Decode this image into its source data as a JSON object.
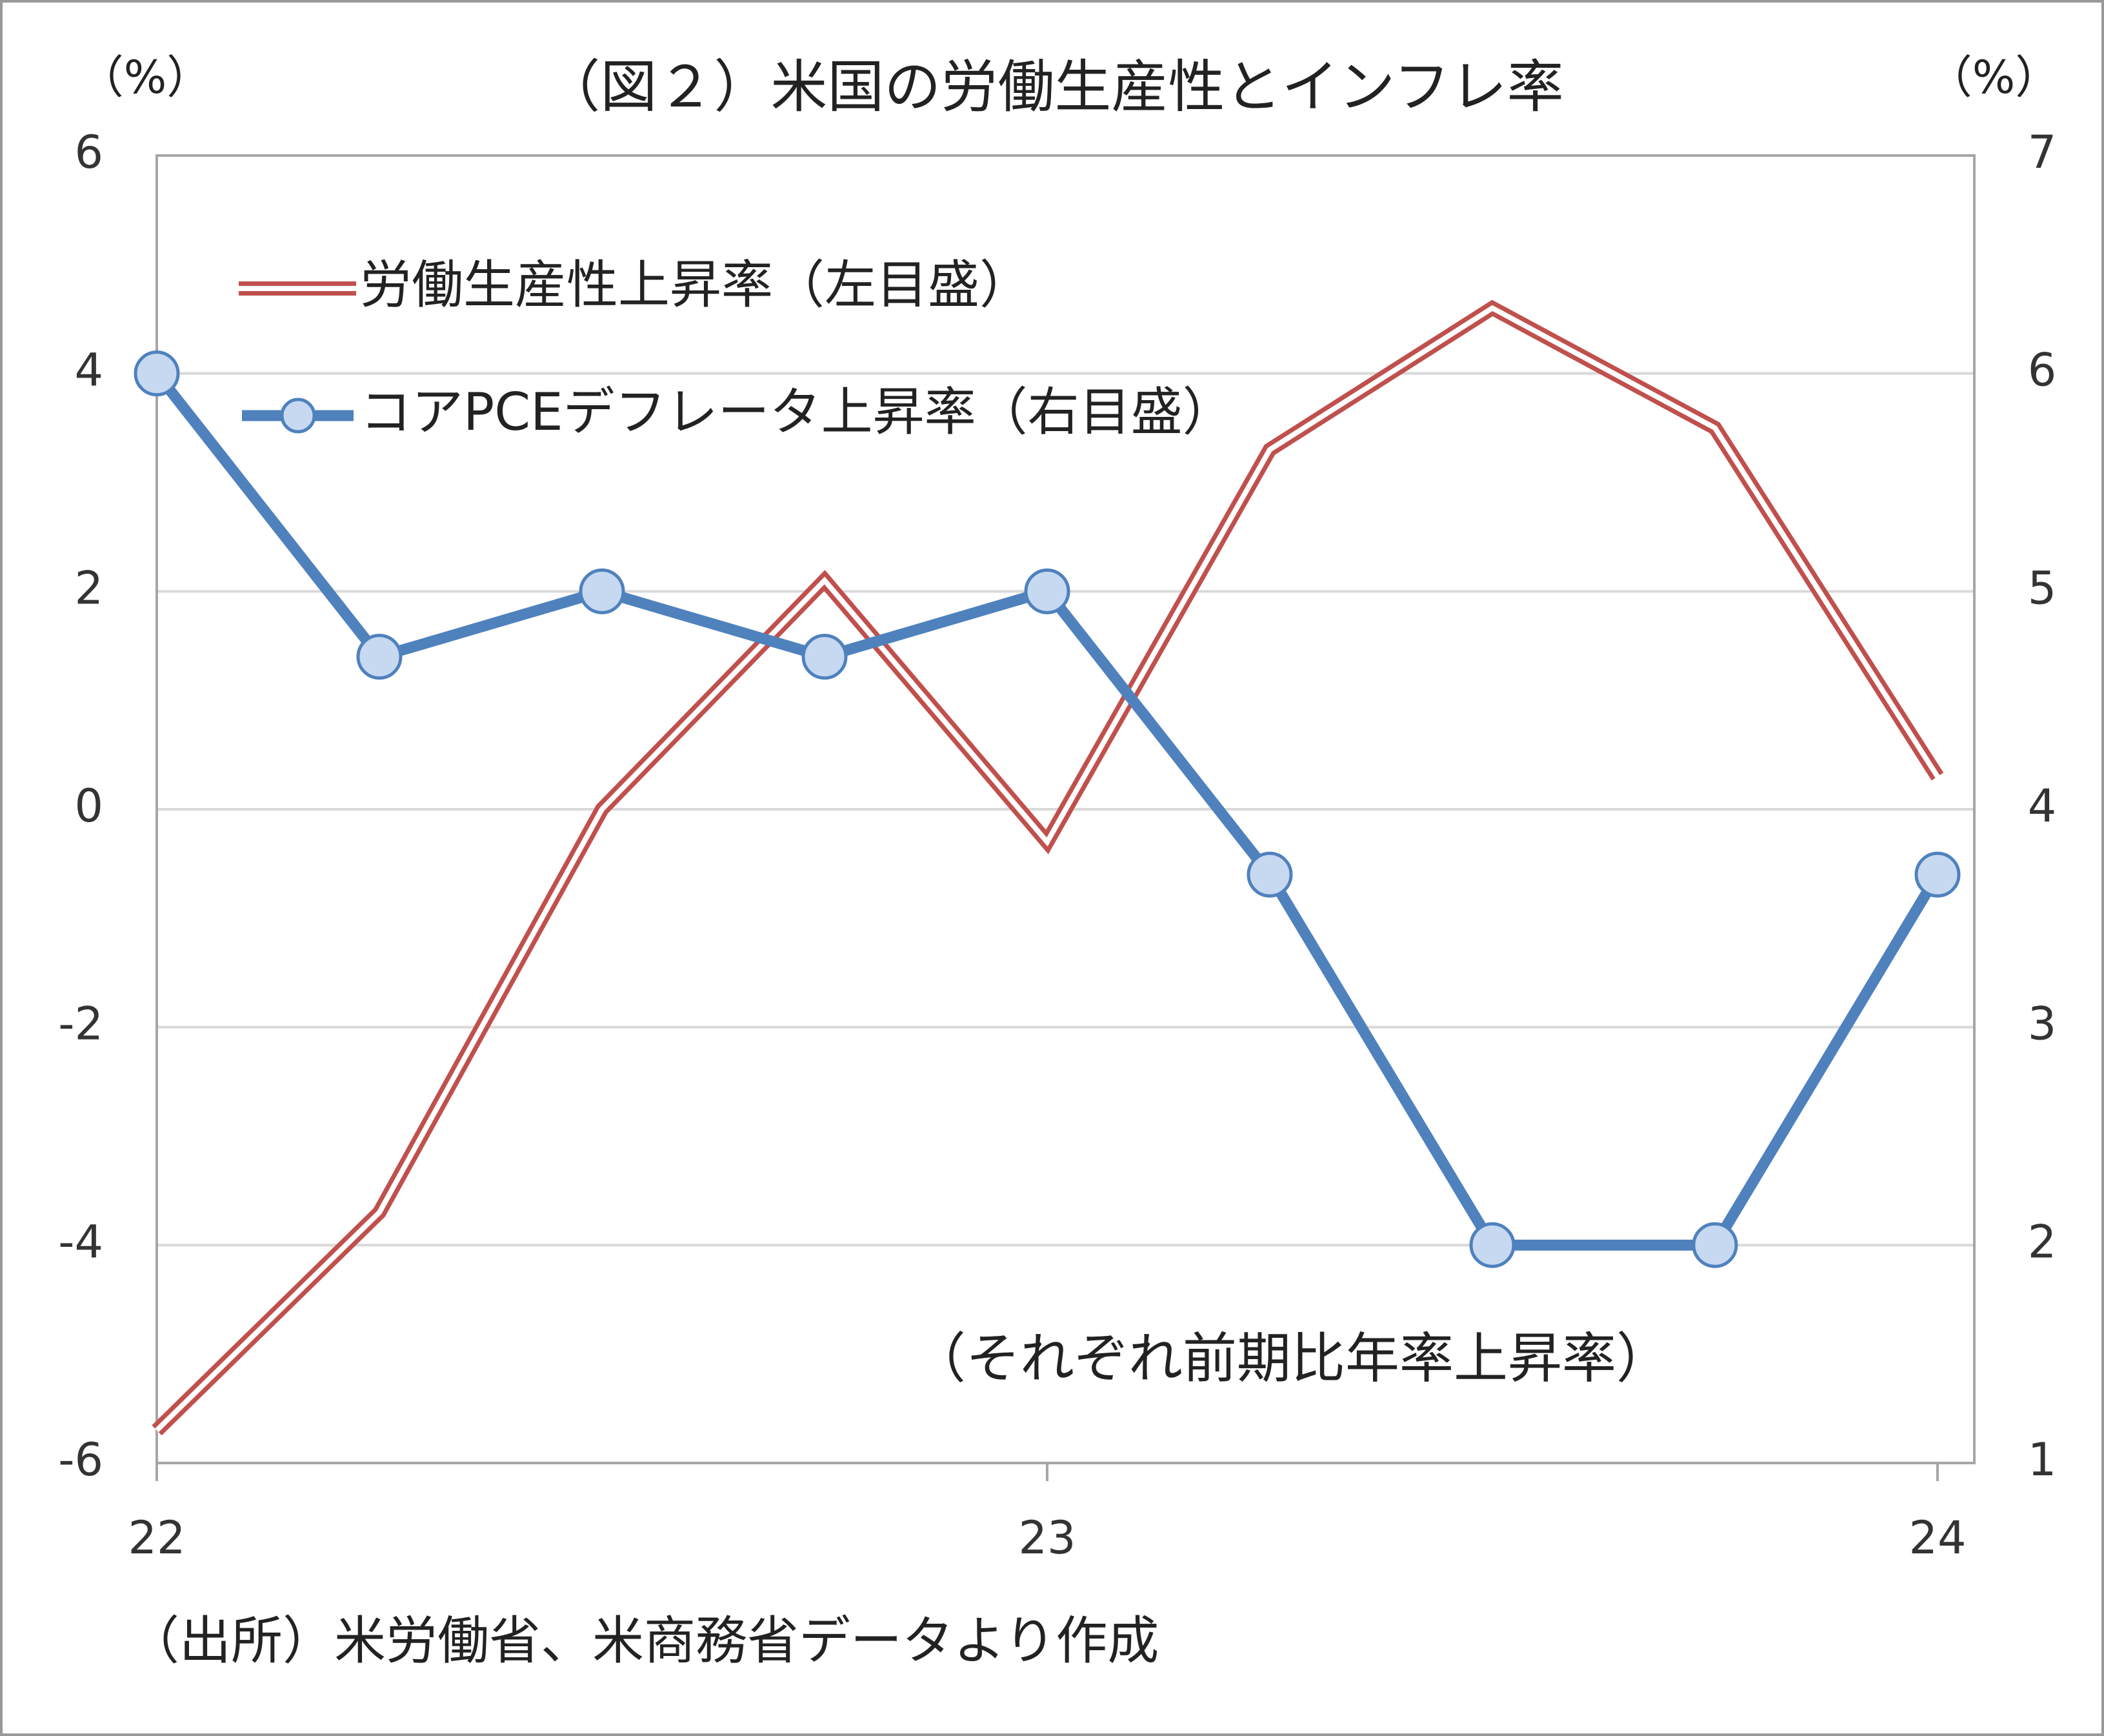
{
  "chart_data": {
    "type": "line",
    "title": "（図２）米国の労働生産性とインフレ率",
    "y_unit": "（%）",
    "y2_unit": "（%）",
    "annotation": "（それぞれ前期比年率上昇率）",
    "source": "（出所）米労働省、米商務省データより作成",
    "categories": [
      "22",
      null,
      null,
      null,
      "23",
      null,
      null,
      null,
      "24"
    ],
    "series": [
      {
        "name": "労働生産性上昇率（左目盛）",
        "color": "#c0504d",
        "style": "double",
        "values": [
          -5.7,
          -3.7,
          0.0,
          2.1,
          -0.3,
          3.3,
          4.6,
          3.5,
          0.3
        ]
      },
      {
        "name": "コアPCEデフレータ上昇率（右目盛）",
        "color": "#4f81bd",
        "marker_fill": "#c6d9f1",
        "axis": "y2",
        "values": [
          6.0,
          4.7,
          5.0,
          4.7,
          5.0,
          3.7,
          2.0,
          2.0,
          3.7
        ]
      }
    ],
    "ylim": [
      -6,
      6
    ],
    "yticks": [
      -6,
      -4,
      -2,
      0,
      2,
      4,
      6
    ],
    "y2lim": [
      1,
      7
    ],
    "y2ticks": [
      1,
      2,
      3,
      4,
      5,
      6,
      7
    ],
    "grid": true
  }
}
